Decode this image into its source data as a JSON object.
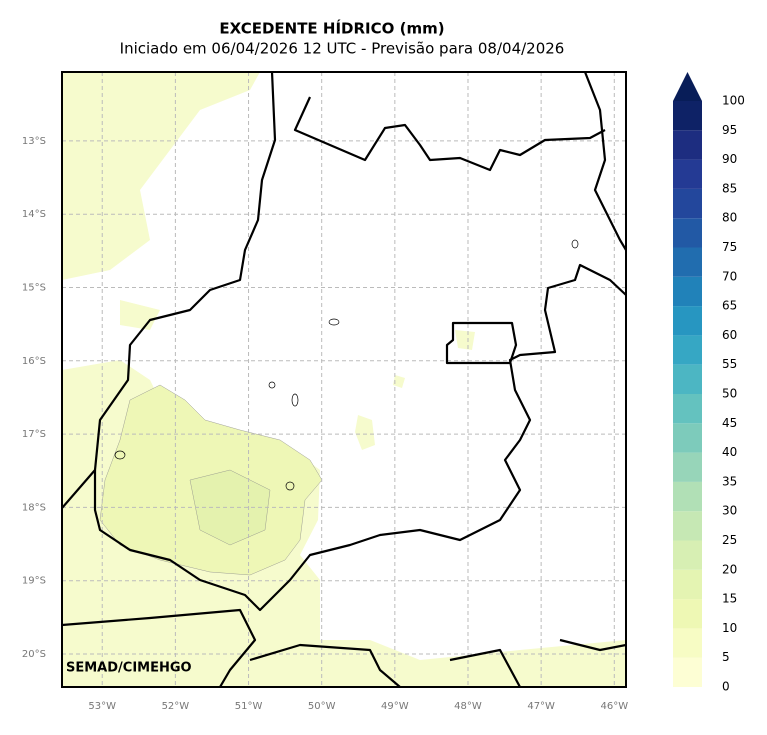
{
  "title": "EXCEDENTE HÍDRICO (mm)",
  "subtitle": "Iniciado em 06/04/2026 12 UTC - Previsão para 08/04/2026",
  "map": {
    "xlim": [
      -53.55,
      -45.84
    ],
    "ylim": [
      -20.45,
      -12.06
    ],
    "grid": true,
    "xticks": [
      {
        "value": -53,
        "label": "53°W"
      },
      {
        "value": -52,
        "label": "52°W"
      },
      {
        "value": -51,
        "label": "51°W"
      },
      {
        "value": -50,
        "label": "50°W"
      },
      {
        "value": -49,
        "label": "49°W"
      },
      {
        "value": -48,
        "label": "48°W"
      },
      {
        "value": -47,
        "label": "47°W"
      },
      {
        "value": -46,
        "label": "46°W"
      }
    ],
    "yticks": [
      {
        "value": -13,
        "label": "13°S"
      },
      {
        "value": -14,
        "label": "14°S"
      },
      {
        "value": -15,
        "label": "15°S"
      },
      {
        "value": -16,
        "label": "16°S"
      },
      {
        "value": -17,
        "label": "17°S"
      },
      {
        "value": -18,
        "label": "18°S"
      },
      {
        "value": -19,
        "label": "19°S"
      },
      {
        "value": -20,
        "label": "20°S"
      }
    ],
    "credit": "SEMAD/CIMEHGO"
  },
  "colorbar": {
    "levels": [
      0,
      5,
      10,
      15,
      20,
      25,
      30,
      35,
      40,
      45,
      50,
      55,
      60,
      65,
      70,
      75,
      80,
      85,
      90,
      95,
      100
    ],
    "colors": [
      "#fdfed4",
      "#f7fcc4",
      "#eef8b4",
      "#e4f4b2",
      "#d7efb3",
      "#c6e8b4",
      "#b1e0b6",
      "#97d5b9",
      "#7dcbbb",
      "#64c2bf",
      "#4cb6c3",
      "#36a7c4",
      "#2796c1",
      "#2182b9",
      "#216daf",
      "#2259a5",
      "#23479c",
      "#243a94",
      "#1d2d80",
      "#0e2266"
    ],
    "extend_color": "#081d58"
  }
}
